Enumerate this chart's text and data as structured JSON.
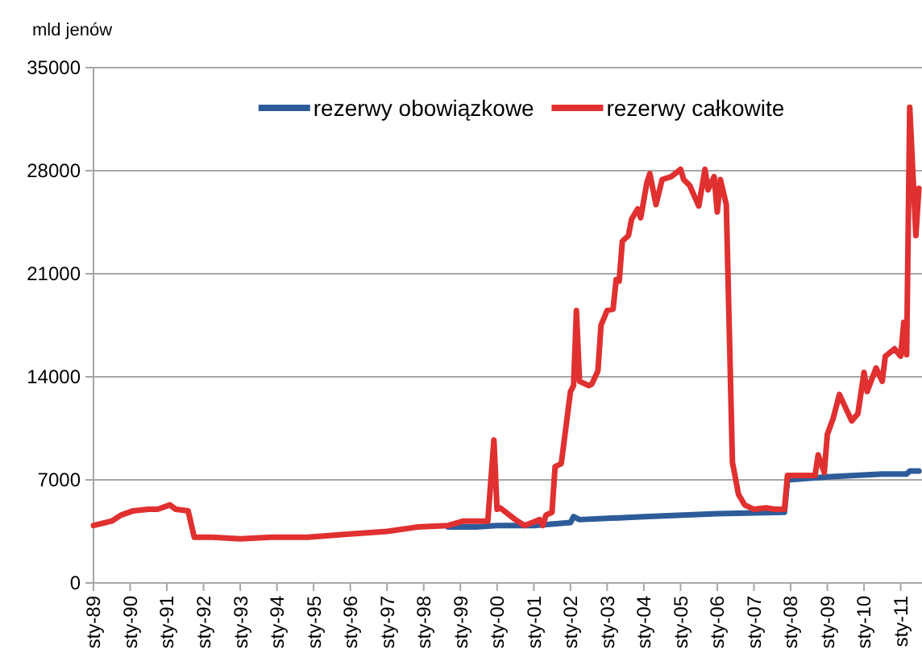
{
  "chart_data": {
    "type": "line",
    "ylabel": "mld jenów",
    "legend": "top",
    "grid": "y",
    "line_style": "solid",
    "marker": "none",
    "ylim": [
      0,
      35000
    ],
    "yticks": [
      0,
      7000,
      14000,
      21000,
      28000,
      35000
    ],
    "xlim": [
      "1989-01",
      "2011-08"
    ],
    "xticks": [
      {
        "value": "1989-01",
        "label": "sty-89"
      },
      {
        "value": "1990-01",
        "label": "sty-90"
      },
      {
        "value": "1991-01",
        "label": "sty-91"
      },
      {
        "value": "1992-01",
        "label": "sty-92"
      },
      {
        "value": "1993-01",
        "label": "sty-93"
      },
      {
        "value": "1994-01",
        "label": "sty-94"
      },
      {
        "value": "1995-01",
        "label": "sty-95"
      },
      {
        "value": "1996-01",
        "label": "sty-96"
      },
      {
        "value": "1997-01",
        "label": "sty-97"
      },
      {
        "value": "1998-01",
        "label": "sty-98"
      },
      {
        "value": "1999-01",
        "label": "sty-99"
      },
      {
        "value": "2000-01",
        "label": "sty-00"
      },
      {
        "value": "2001-01",
        "label": "sty-01"
      },
      {
        "value": "2002-01",
        "label": "sty-02"
      },
      {
        "value": "2003-01",
        "label": "sty-03"
      },
      {
        "value": "2004-01",
        "label": "sty-04"
      },
      {
        "value": "2005-01",
        "label": "sty-05"
      },
      {
        "value": "2006-01",
        "label": "sty-06"
      },
      {
        "value": "2007-01",
        "label": "sty-07"
      },
      {
        "value": "2008-01",
        "label": "sty-08"
      },
      {
        "value": "2009-01",
        "label": "sty-09"
      },
      {
        "value": "2010-01",
        "label": "sty-10"
      },
      {
        "value": "2011-01",
        "label": "sty-11"
      }
    ],
    "series": [
      {
        "name": "rezerwy obowiązkowe",
        "color": "#2e5c9a",
        "x": [
          "1998-09",
          "1999-06",
          "2000-01",
          "2001-01",
          "2002-01",
          "2002-02",
          "2002-04",
          "2004-01",
          "2006-01",
          "2007-11",
          "2007-12",
          "2009-01",
          "2010-07",
          "2011-03",
          "2011-04",
          "2011-07"
        ],
        "values": [
          3800,
          3800,
          3900,
          3900,
          4100,
          4500,
          4300,
          4500,
          4700,
          4800,
          7000,
          7200,
          7400,
          7400,
          7600,
          7600
        ]
      },
      {
        "name": "rezerwy całkowite",
        "color": "#e03030",
        "x": [
          "1989-01",
          "1989-07",
          "1989-10",
          "1990-02",
          "1990-07",
          "1990-10",
          "1991-02",
          "1991-04",
          "1991-08",
          "1991-10",
          "1992-04",
          "1993-01",
          "1993-11",
          "1994-11",
          "1995-11",
          "1997-01",
          "1997-11",
          "1998-09",
          "1999-02",
          "1999-06",
          "1999-10",
          "1999-12",
          "2000-01",
          "2000-02",
          "2000-07",
          "2000-10",
          "2001-03",
          "2001-04",
          "2001-05",
          "2001-07",
          "2001-08",
          "2001-10",
          "2002-01",
          "2002-02",
          "2002-03",
          "2002-04",
          "2002-07",
          "2002-08",
          "2002-10",
          "2002-11",
          "2003-01",
          "2003-03",
          "2003-04",
          "2003-05",
          "2003-06",
          "2003-08",
          "2003-09",
          "2003-11",
          "2003-12",
          "2004-02",
          "2004-03",
          "2004-05",
          "2004-07",
          "2004-10",
          "2005-01",
          "2005-02",
          "2005-04",
          "2005-07",
          "2005-09",
          "2005-10",
          "2005-12",
          "2006-01",
          "2006-02",
          "2006-04",
          "2006-06",
          "2006-08",
          "2006-10",
          "2007-01",
          "2007-05",
          "2007-08",
          "2007-11",
          "2007-12",
          "2008-05",
          "2008-09",
          "2008-10",
          "2008-12",
          "2009-01",
          "2009-03",
          "2009-05",
          "2009-07",
          "2009-09",
          "2009-11",
          "2010-01",
          "2010-02",
          "2010-05",
          "2010-07",
          "2010-08",
          "2010-11",
          "2011-01",
          "2011-02",
          "2011-03",
          "2011-04",
          "2011-06",
          "2011-07"
        ],
        "values": [
          3900,
          4200,
          4600,
          4900,
          5000,
          5000,
          5300,
          5000,
          4900,
          3100,
          3100,
          3000,
          3100,
          3100,
          3300,
          3500,
          3800,
          3900,
          4200,
          4200,
          4200,
          9700,
          5000,
          5100,
          4300,
          3900,
          4300,
          3900,
          4600,
          4800,
          7900,
          8100,
          13000,
          13400,
          18500,
          13700,
          13400,
          13500,
          14400,
          17500,
          18500,
          18600,
          20600,
          20500,
          23200,
          23600,
          24700,
          25400,
          24800,
          27200,
          27800,
          25700,
          27400,
          27600,
          28100,
          27400,
          27000,
          25600,
          28100,
          26700,
          27600,
          25200,
          27400,
          25700,
          8200,
          6000,
          5300,
          5000,
          5100,
          5000,
          5000,
          7300,
          7300,
          7300,
          8700,
          7500,
          10100,
          11200,
          12800,
          11900,
          11000,
          11500,
          14300,
          13000,
          14600,
          13700,
          15400,
          15900,
          15400,
          17700,
          15500,
          32300,
          23600,
          26800
        ]
      }
    ]
  }
}
